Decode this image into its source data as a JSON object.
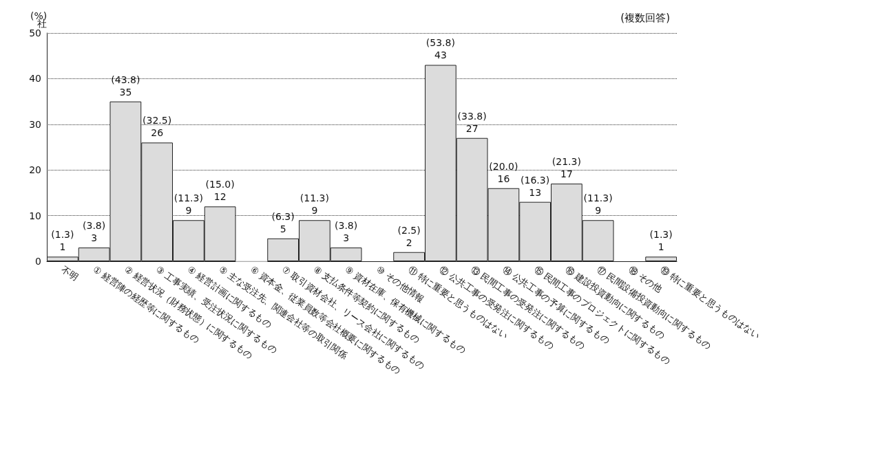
{
  "chart_data": {
    "type": "bar",
    "categories": [
      "不明",
      "① 経営陣の経歴等に関するもの",
      "② 経営状況（財務状態）に関するもの",
      "③ 工事実績、受注状況に関するもの",
      "④ 経営計画に関するもの",
      "⑤ 主な受注先、関連会社等の取引関係",
      "⑥ 資本金、従業員数等会社概要に関するもの",
      "⑦ 取引資材会社、リース会社に関するもの",
      "⑧ 支払条件等契約に関するもの",
      "⑨ 資材在庫、保有機械に関するもの",
      "⑩ その他情報",
      "⑪ 特に重要と思うものはない",
      "⑫ 公共工事の受発注に関するもの",
      "⑬ 民間工事の受発注に関するもの",
      "⑭ 公共工事の予算に関するもの",
      "⑮ 民間工事のプロジェクトに関するもの",
      "⑯ 建設投資動向に関するもの",
      "⑰ 民間設備投資動向に関するもの",
      "⑱ その他",
      "⑲ 特に重要と思うものはない"
    ],
    "values": [
      1,
      3,
      35,
      26,
      9,
      12,
      0,
      5,
      9,
      3,
      null,
      2,
      43,
      27,
      16,
      13,
      17,
      9,
      null,
      1
    ],
    "value_labels": [
      "(1.3)\n1",
      "(3.8)\n3",
      "(43.8)\n35",
      "(32.5)\n26",
      "(11.3)\n9",
      "(15.0)\n12",
      null,
      "(6.3)\n5",
      "(11.3)\n9",
      "(3.8)\n3",
      null,
      "(2.5)\n2",
      "(53.8)\n43",
      "(33.8)\n27",
      "(20.0)\n16",
      "(16.3)\n13",
      "(21.3)\n17",
      "(11.3)\n9",
      null,
      "(1.3)\n1"
    ],
    "color": "#dcdcdc",
    "ylabel": "社",
    "ylim": [
      0,
      50
    ],
    "yticks": [
      0,
      10,
      20,
      30,
      40,
      50
    ],
    "grid": "y",
    "annotations": [
      "(%)",
      "(複数回答)"
    ]
  }
}
